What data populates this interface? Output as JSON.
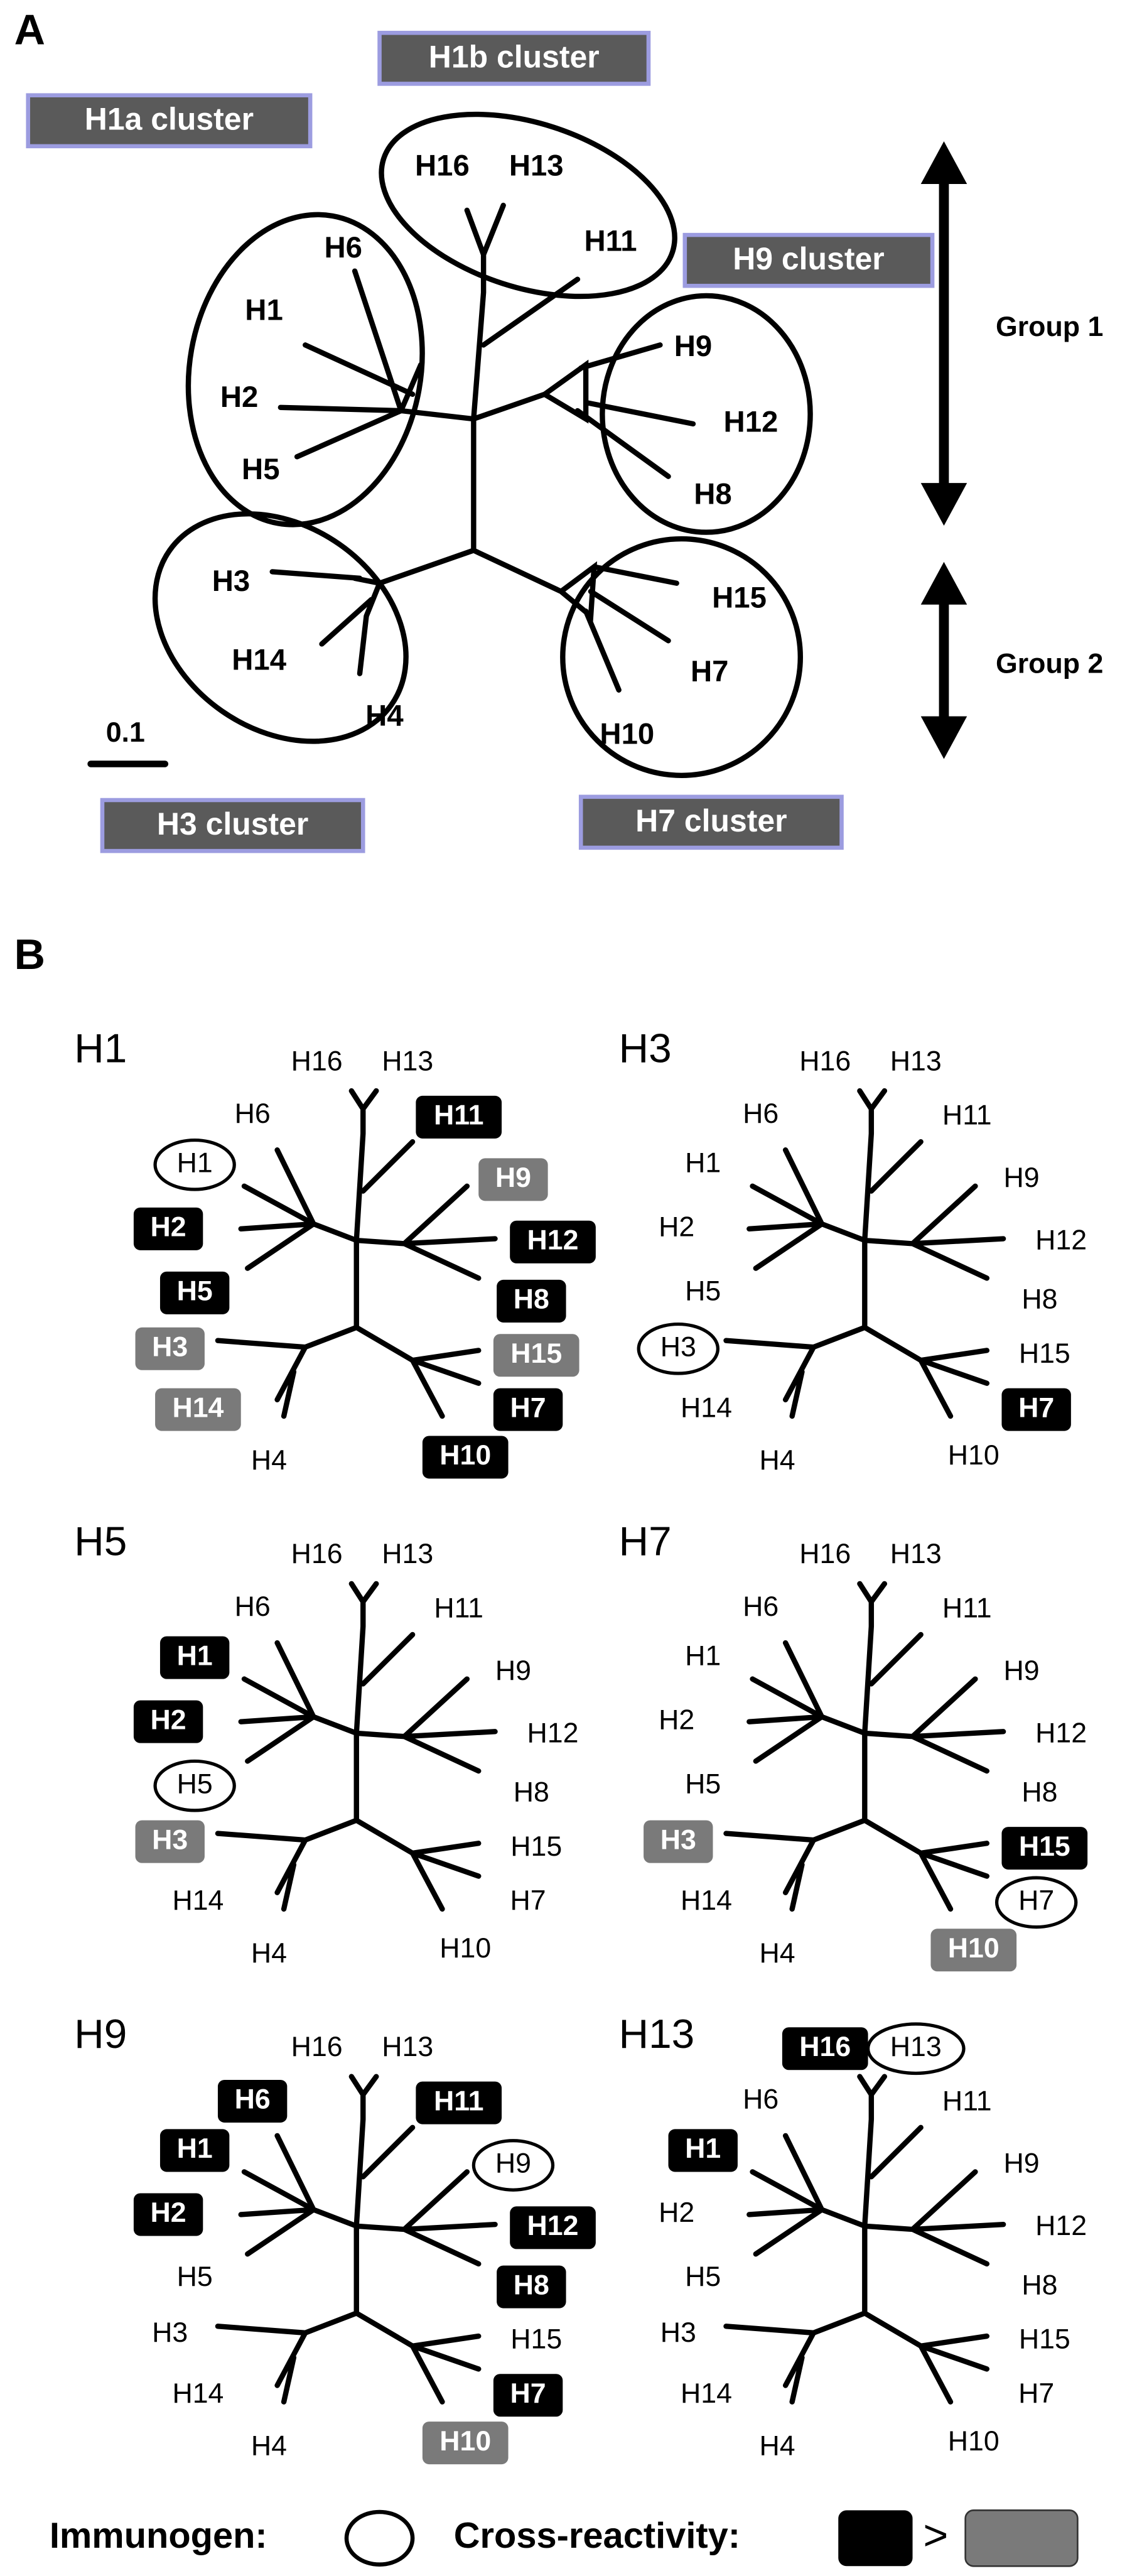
{
  "panel_a": {
    "label": "A",
    "clusters": [
      "H1a cluster",
      "H1b cluster",
      "H9 cluster",
      "H3 cluster",
      "H7 cluster"
    ],
    "nodes": [
      "H16",
      "H13",
      "H6",
      "H11",
      "H1",
      "H9",
      "H2",
      "H12",
      "H5",
      "H8",
      "H3",
      "H15",
      "H14",
      "H7",
      "H4",
      "H10"
    ],
    "groups": [
      "Group 1",
      "Group 2"
    ],
    "scale": "0.1"
  },
  "panel_b": {
    "label": "B",
    "panels": [
      {
        "title": "H1",
        "labels": [
          {
            "text": "H16"
          },
          {
            "text": "H13"
          },
          {
            "text": "H6"
          },
          {
            "text": "H11",
            "mark": "strong"
          },
          {
            "text": "H1",
            "mark": "immunogen"
          },
          {
            "text": "H9",
            "mark": "weak"
          },
          {
            "text": "H2",
            "mark": "strong"
          },
          {
            "text": "H12",
            "mark": "strong"
          },
          {
            "text": "H5",
            "mark": "strong"
          },
          {
            "text": "H8",
            "mark": "strong"
          },
          {
            "text": "H3",
            "mark": "weak"
          },
          {
            "text": "H15",
            "mark": "weak"
          },
          {
            "text": "H14",
            "mark": "weak"
          },
          {
            "text": "H7",
            "mark": "strong"
          },
          {
            "text": "H4"
          },
          {
            "text": "H10",
            "mark": "strong"
          }
        ]
      },
      {
        "title": "H3",
        "labels": [
          {
            "text": "H16"
          },
          {
            "text": "H13"
          },
          {
            "text": "H6"
          },
          {
            "text": "H11"
          },
          {
            "text": "H1"
          },
          {
            "text": "H9"
          },
          {
            "text": "H2"
          },
          {
            "text": "H12"
          },
          {
            "text": "H5"
          },
          {
            "text": "H8"
          },
          {
            "text": "H3",
            "mark": "immunogen"
          },
          {
            "text": "H15"
          },
          {
            "text": "H14"
          },
          {
            "text": "H7",
            "mark": "strong"
          },
          {
            "text": "H4"
          },
          {
            "text": "H10"
          }
        ]
      },
      {
        "title": "H5",
        "labels": [
          {
            "text": "H16"
          },
          {
            "text": "H13"
          },
          {
            "text": "H6"
          },
          {
            "text": "H11"
          },
          {
            "text": "H1",
            "mark": "strong"
          },
          {
            "text": "H9"
          },
          {
            "text": "H2",
            "mark": "strong"
          },
          {
            "text": "H12"
          },
          {
            "text": "H5",
            "mark": "immunogen"
          },
          {
            "text": "H8"
          },
          {
            "text": "H3",
            "mark": "weak"
          },
          {
            "text": "H15"
          },
          {
            "text": "H14"
          },
          {
            "text": "H7"
          },
          {
            "text": "H4"
          },
          {
            "text": "H10"
          }
        ]
      },
      {
        "title": "H7",
        "labels": [
          {
            "text": "H16"
          },
          {
            "text": "H13"
          },
          {
            "text": "H6"
          },
          {
            "text": "H11"
          },
          {
            "text": "H1"
          },
          {
            "text": "H9"
          },
          {
            "text": "H2"
          },
          {
            "text": "H12"
          },
          {
            "text": "H5"
          },
          {
            "text": "H8"
          },
          {
            "text": "H3",
            "mark": "weak"
          },
          {
            "text": "H15",
            "mark": "strong"
          },
          {
            "text": "H14"
          },
          {
            "text": "H7",
            "mark": "immunogen"
          },
          {
            "text": "H4"
          },
          {
            "text": "H10",
            "mark": "weak"
          }
        ]
      },
      {
        "title": "H9",
        "labels": [
          {
            "text": "H16"
          },
          {
            "text": "H13"
          },
          {
            "text": "H6",
            "mark": "strong"
          },
          {
            "text": "H11",
            "mark": "strong"
          },
          {
            "text": "H1",
            "mark": "strong"
          },
          {
            "text": "H9",
            "mark": "immunogen"
          },
          {
            "text": "H2",
            "mark": "strong"
          },
          {
            "text": "H12",
            "mark": "strong"
          },
          {
            "text": "H5"
          },
          {
            "text": "H8",
            "mark": "strong"
          },
          {
            "text": "H3"
          },
          {
            "text": "H15"
          },
          {
            "text": "H14"
          },
          {
            "text": "H7",
            "mark": "strong"
          },
          {
            "text": "H4"
          },
          {
            "text": "H10",
            "mark": "weak"
          }
        ]
      },
      {
        "title": "H13",
        "labels": [
          {
            "text": "H16",
            "mark": "strong"
          },
          {
            "text": "H13",
            "mark": "immunogen"
          },
          {
            "text": "H6"
          },
          {
            "text": "H11"
          },
          {
            "text": "H1",
            "mark": "strong"
          },
          {
            "text": "H9"
          },
          {
            "text": "H2"
          },
          {
            "text": "H12"
          },
          {
            "text": "H5"
          },
          {
            "text": "H8"
          },
          {
            "text": "H3"
          },
          {
            "text": "H15"
          },
          {
            "text": "H14"
          },
          {
            "text": "H7"
          },
          {
            "text": "H4"
          },
          {
            "text": "H10"
          }
        ]
      }
    ]
  },
  "legend": {
    "immunogen": "Immunogen:",
    "cross_reactivity": "Cross-reactivity:",
    "greater": ">"
  }
}
